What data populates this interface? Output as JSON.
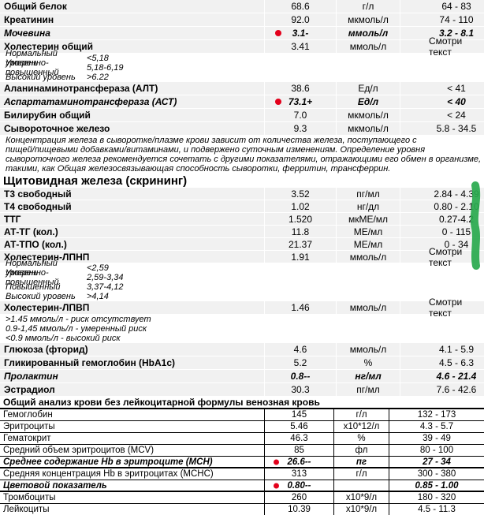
{
  "colors": {
    "row_bg": "#f1f1f1",
    "flag_red": "#e3001b",
    "marker_green": "#28a94d"
  },
  "blocks": [
    {
      "kind": "row",
      "name": "Общий белок",
      "value": "68.6",
      "unit": "г/л",
      "range": "64 - 83",
      "abnormal": false,
      "dot": false
    },
    {
      "kind": "row",
      "name": "Креатинин",
      "value": "92.0",
      "unit": "мкмоль/л",
      "range": "74 - 110",
      "abnormal": false,
      "dot": false
    },
    {
      "kind": "row",
      "name": "Мочевина",
      "value": "3.1-",
      "unit": "ммоль/л",
      "range": "3.2 - 8.1",
      "abnormal": true,
      "dot": true
    },
    {
      "kind": "row",
      "name": "Холестерин общий",
      "value": "3.41",
      "unit": "ммоль/л",
      "range": "Смотри текст",
      "abnormal": false,
      "dot": false
    },
    {
      "kind": "note2",
      "label": "Нормальный уровень",
      "value": "<5,18"
    },
    {
      "kind": "note2",
      "label": "Умеренно-повышенный",
      "value": "5,18-6,19"
    },
    {
      "kind": "note2",
      "label": "Высокий уровень",
      "value": ">6.22"
    },
    {
      "kind": "row",
      "name": "Аланинаминотрансфераза (АЛТ)",
      "value": "38.6",
      "unit": "Ед/л",
      "range": "< 41",
      "abnormal": false,
      "dot": false
    },
    {
      "kind": "row",
      "name": "Аспартатаминотрансфераза (АСТ)",
      "value": "73.1+",
      "unit": "Ед/л",
      "range": "< 40",
      "abnormal": true,
      "dot": true
    },
    {
      "kind": "row",
      "name": "Билирубин общий",
      "value": "7.0",
      "unit": "мкмоль/л",
      "range": "< 24",
      "abnormal": false,
      "dot": false
    },
    {
      "kind": "row",
      "name": "Сывороточное железо",
      "value": "9.3",
      "unit": "мкмоль/л",
      "range": "5.8 - 34.5",
      "abnormal": false,
      "dot": false
    },
    {
      "kind": "note",
      "text": "Концентрация железа в сыворотке/плазме крови зависит от количества железа, поступающего с"
    },
    {
      "kind": "note",
      "text": "пищей/пищевыми добавками/витаминами, и подвержено суточным изменениям. Определение уровня"
    },
    {
      "kind": "note",
      "text": "сывороточного железа рекомендуется сочетать с другими показателями, отражающими его обмен в организме,"
    },
    {
      "kind": "note",
      "text": "такими, как Общая железосвязывающая способность сыворотки, ферритин, трансферрин."
    },
    {
      "kind": "header",
      "level": "large",
      "text": "Щитовидная железа (скрининг)"
    },
    {
      "kind": "row",
      "compact": true,
      "name": "Т3 свободный",
      "value": "3.52",
      "unit": "пг/мл",
      "range": "2.84 - 4.39",
      "abnormal": false,
      "dot": false
    },
    {
      "kind": "row",
      "compact": true,
      "name": "Т4 свободный",
      "value": "1.02",
      "unit": "нг/дл",
      "range": "0.80 - 2.10",
      "abnormal": false,
      "dot": false
    },
    {
      "kind": "row",
      "compact": true,
      "name": "ТТГ",
      "value": "1.520",
      "unit": "мкМЕ/мл",
      "range": "0.27-4.2",
      "abnormal": false,
      "dot": false
    },
    {
      "kind": "row",
      "compact": true,
      "name": "АТ-ТГ (кол.)",
      "value": "11.8",
      "unit": "МЕ/мл",
      "range": "0 - 115",
      "abnormal": false,
      "dot": false
    },
    {
      "kind": "row",
      "compact": true,
      "name": "АТ-ТПО (кол.)",
      "value": "21.37",
      "unit": "МЕ/мл",
      "range": "0 - 34",
      "abnormal": false,
      "dot": false
    },
    {
      "kind": "row",
      "compact": true,
      "name": "Холестерин-ЛПНП",
      "value": "1.91",
      "unit": "ммоль/л",
      "range": "Смотри текст",
      "abnormal": false,
      "dot": false
    },
    {
      "kind": "note2",
      "label": "Нормальный уровень",
      "value": "<2,59"
    },
    {
      "kind": "note2",
      "label": "Умеренно-повышенный",
      "value": "2,59-3,34"
    },
    {
      "kind": "note2",
      "label": "Повышенный",
      "value": "3,37-4,12"
    },
    {
      "kind": "note2",
      "label": "Высокий уровень",
      "value": ">4,14"
    },
    {
      "kind": "row",
      "name": "Холестерин-ЛПВП",
      "value": "1.46",
      "unit": "ммоль/л",
      "range": "Смотри текст",
      "abnormal": false,
      "dot": false
    },
    {
      "kind": "note",
      "text": ">1.45 ммоль/л - риск отсутствует"
    },
    {
      "kind": "note",
      "text": "0.9-1,45 ммоль/л - умеренный риск"
    },
    {
      "kind": "note",
      "text": "<0.9 ммоль/л - высокий риск"
    },
    {
      "kind": "row",
      "name": "Глюкоза (фторид)",
      "value": "4.6",
      "unit": "ммоль/л",
      "range": "4.1 - 5.9",
      "abnormal": false,
      "dot": false
    },
    {
      "kind": "row",
      "name": "Гликированный гемоглобин (HbA1c)",
      "value": "5.2",
      "unit": "%",
      "range": "4.5 - 6.3",
      "abnormal": false,
      "dot": false
    },
    {
      "kind": "row",
      "name": "Пролактин",
      "value": "0.8--",
      "unit": "нг/мл",
      "range": "4.6 - 21.4",
      "abnormal": true,
      "dot": false
    },
    {
      "kind": "row",
      "name": "Эстрадиол",
      "value": "30.3",
      "unit": "пг/мл",
      "range": "7.6 - 42.6",
      "abnormal": false,
      "dot": false
    },
    {
      "kind": "header",
      "level": "small",
      "text": "Общий анализ крови без лейкоцитарной формулы венозная кровь"
    },
    {
      "kind": "table",
      "rows": [
        {
          "name": "Гемоглобин",
          "value": "145",
          "unit": "г/л",
          "range": "132 - 173",
          "abnormal": false,
          "dot": false
        },
        {
          "name": "Эритроциты",
          "value": "5.46",
          "unit": "х10*12/л",
          "range": "4.3 - 5.7",
          "abnormal": false,
          "dot": false
        },
        {
          "name": "Гематокрит",
          "value": "46.3",
          "unit": "%",
          "range": "39 - 49",
          "abnormal": false,
          "dot": false
        },
        {
          "name": "Средний объем эритроцитов (MCV)",
          "value": "85",
          "unit": "фл",
          "range": "80 - 100",
          "abnormal": false,
          "dot": false
        },
        {
          "name": "Среднее содержание Hb в эритроците (MCH)",
          "value": "26.6--",
          "unit": "пг",
          "range": "27 - 34",
          "abnormal": true,
          "dot": true
        },
        {
          "name": "Средняя концентрация Hb в эритроцитах (MCHC)",
          "value": "313",
          "unit": "г/л",
          "range": "300 - 380",
          "abnormal": false,
          "dot": false
        },
        {
          "name": "Цветовой показатель",
          "value": "0.80--",
          "unit": "",
          "range": "0.85 - 1.00",
          "abnormal": true,
          "dot": true
        },
        {
          "name": "Тромбоциты",
          "value": "260",
          "unit": "х10*9/л",
          "range": "180 - 320",
          "abnormal": false,
          "dot": false
        },
        {
          "name": "Лейкоциты",
          "value": "10.39",
          "unit": "х10*9/л",
          "range": "4.5 - 11.3",
          "abnormal": false,
          "dot": false
        }
      ]
    }
  ]
}
